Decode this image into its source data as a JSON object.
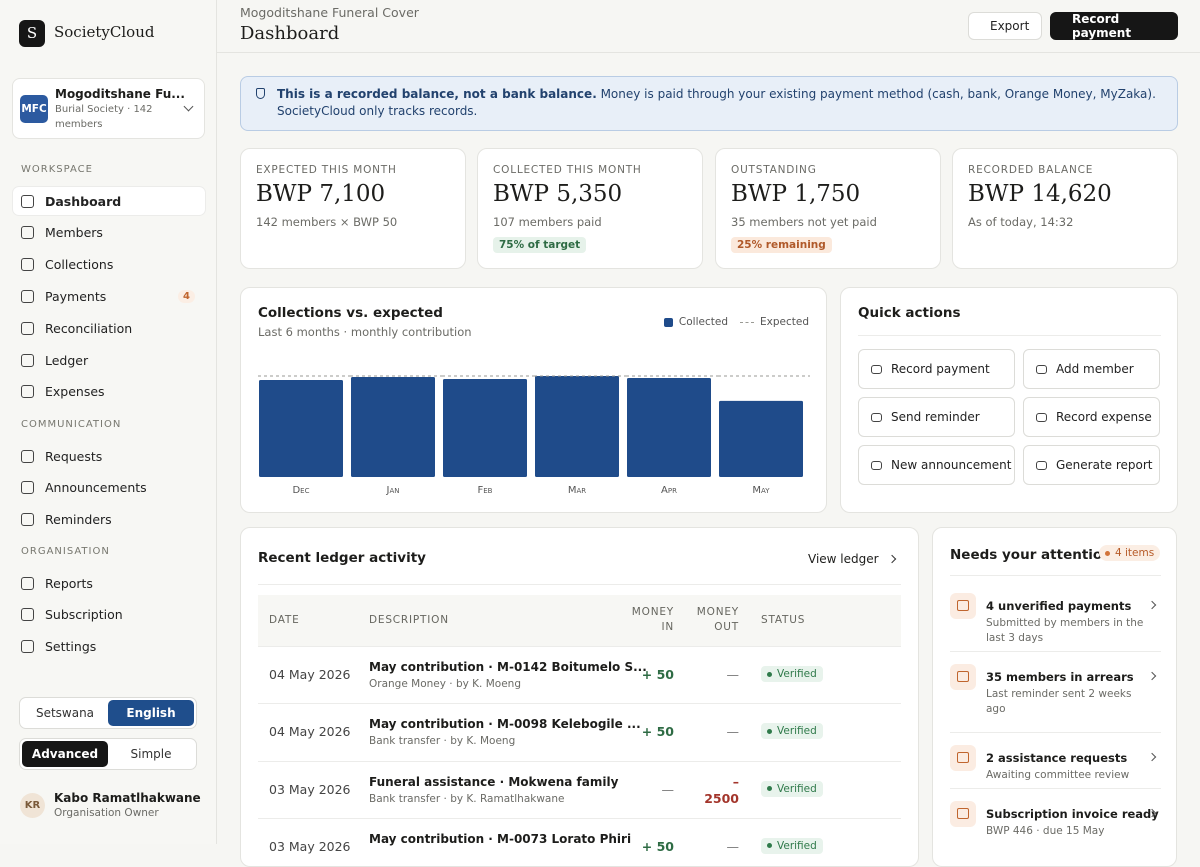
{
  "sidebar": {
    "logo": "S",
    "brand": "SocietyCloud",
    "org": {
      "initials": "MFC",
      "name": "Mogoditshane Fu...",
      "subtitle": "Burial Society · 142 members"
    },
    "sections": [
      {
        "title": "WORKSPACE",
        "items": [
          {
            "label": "Dashboard"
          },
          {
            "label": "Members"
          },
          {
            "label": "Collections"
          },
          {
            "label": "Payments",
            "badge": "4"
          },
          {
            "label": "Reconciliation"
          },
          {
            "label": "Ledger"
          },
          {
            "label": "Expenses"
          }
        ]
      },
      {
        "title": "COMMUNICATION",
        "items": [
          {
            "label": "Requests"
          },
          {
            "label": "Announcements"
          },
          {
            "label": "Reminders"
          }
        ]
      },
      {
        "title": "ORGANISATION",
        "items": [
          {
            "label": "Reports"
          },
          {
            "label": "Subscription"
          },
          {
            "label": "Settings"
          }
        ]
      }
    ],
    "languages": [
      "Setswana",
      "English"
    ],
    "modes": [
      "Advanced",
      "Simple"
    ],
    "user": {
      "initials": "KR",
      "name": "Kabo Ramatlhakwane",
      "role": "Organisation Owner"
    }
  },
  "header": {
    "org": "Mogoditshane Funeral Cover",
    "title": "Dashboard",
    "buttons": [
      "Export",
      "Record payment"
    ]
  },
  "notice": {
    "bold": "This is a recorded balance, not a bank balance.",
    "text": "Money is paid through your existing payment method (cash, bank, Orange Money, MyZaka). SocietyCloud only tracks records."
  },
  "stats": [
    {
      "label": "EXPECTED THIS MONTH",
      "value": "BWP 7,100",
      "sub": "142 members × BWP 50"
    },
    {
      "label": "COLLECTED THIS MONTH",
      "value": "BWP 5,350",
      "sub": "107 members paid",
      "tag": "75% of target"
    },
    {
      "label": "OUTSTANDING",
      "value": "BWP 1,750",
      "sub": "35 members not yet paid",
      "tag": "25% remaining"
    },
    {
      "label": "RECORDED BALANCE",
      "value": "BWP 14,620",
      "sub": "As of today, 14:32"
    }
  ],
  "chart_data": {
    "type": "bar",
    "title": "Collections vs. expected",
    "subtitle": "Last 6 months · monthly contribution",
    "categories": [
      "Dec",
      "Jan",
      "Feb",
      "Mar",
      "Apr",
      "May"
    ],
    "series": [
      {
        "name": "Collected",
        "color": "#1f4b8a",
        "values": [
          6820,
          7030,
          6890,
          7100,
          6960,
          5350
        ]
      },
      {
        "name": "Expected",
        "color": "#9a9a94",
        "values": [
          7100,
          7100,
          7100,
          7100,
          7100,
          7100
        ]
      }
    ]
  },
  "quick_actions": {
    "title": "Quick actions",
    "actions": [
      "Record payment",
      "Add member",
      "Send reminder",
      "Record expense",
      "New announcement",
      "Generate report"
    ]
  },
  "ledger": {
    "title": "Recent ledger activity",
    "link": "View ledger",
    "columns": [
      "DATE",
      "DESCRIPTION",
      "MONEY IN",
      "MONEY OUT",
      "STATUS"
    ],
    "rows": [
      {
        "date": "04 May 2026",
        "description": "May contribution · M-0142 Boitumelo S...",
        "meta": "Orange Money · by K. Moeng",
        "in": "+ 50",
        "out": "—",
        "status": "Verified"
      },
      {
        "date": "04 May 2026",
        "description": "May contribution · M-0098 Kelebogile ...",
        "meta": "Bank transfer · by K. Moeng",
        "in": "+ 50",
        "out": "—",
        "status": "Verified"
      },
      {
        "date": "03 May 2026",
        "description": "Funeral assistance · Mokwena family",
        "meta": "Bank transfer · by K. Ramatlhakwane",
        "in": "—",
        "out": "– 2500",
        "status": "Verified"
      },
      {
        "date": "03 May 2026",
        "description": "May contribution · M-0073 Lorato Phiri",
        "meta": "",
        "in": "+ 50",
        "out": "—",
        "status": "Verified"
      }
    ]
  },
  "attention": {
    "title": "Needs your attention",
    "badge": "4 items",
    "items": [
      {
        "title": "4 unverified payments",
        "sub": "Submitted by members in the last 3 days"
      },
      {
        "title": "35 members in arrears",
        "sub": "Last reminder sent 2 weeks ago"
      },
      {
        "title": "2 assistance requests",
        "sub": "Awaiting committee review"
      },
      {
        "title": "Subscription invoice ready",
        "sub": "BWP 446 · due 15 May"
      }
    ]
  }
}
